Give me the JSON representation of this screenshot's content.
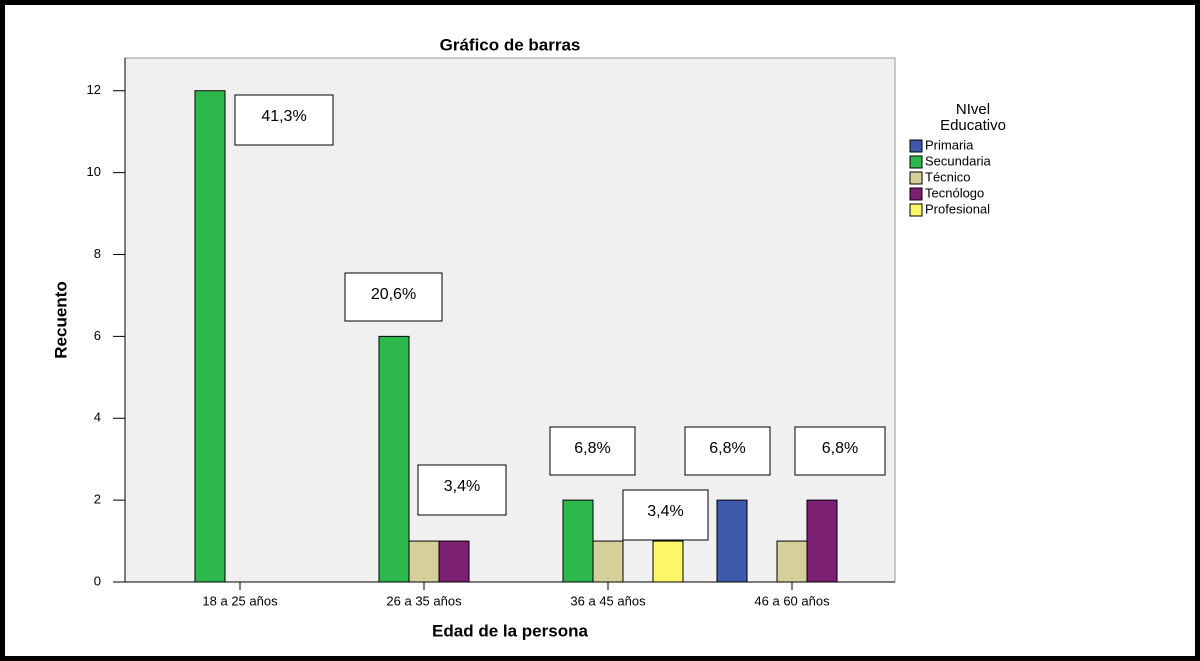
{
  "chart_data": {
    "type": "bar",
    "title": "Gráfico de barras",
    "x_label": "Edad de la persona",
    "y_label": "Recuento",
    "legend_title": [
      "NIvel",
      "Educativo"
    ],
    "legend": "right",
    "categories": [
      "18 a 25 años",
      "26 a 35 años",
      "36 a 45 años",
      "46 a 60 años"
    ],
    "series": [
      {
        "name": "Primaria",
        "color": "#3e58ac",
        "values": [
          0,
          0,
          0,
          2
        ]
      },
      {
        "name": "Secundaria",
        "color": "#2db84c",
        "values": [
          12,
          6,
          2,
          0
        ]
      },
      {
        "name": "Técnico",
        "color": "#d6cf9a",
        "values": [
          0,
          1,
          1,
          1
        ]
      },
      {
        "name": "Tecnólogo",
        "color": "#7b2073",
        "values": [
          0,
          1,
          0,
          2
        ]
      },
      {
        "name": "Profesional",
        "color": "#fbf769",
        "values": [
          0,
          0,
          1,
          0
        ]
      }
    ],
    "ylim": [
      0,
      12.8
    ],
    "yticks": [
      0,
      2,
      4,
      6,
      8,
      10,
      12
    ],
    "annotations": [
      "41,3%",
      "20,6%",
      "3,4%",
      "6,8%",
      "3,4%",
      "6,8%",
      "6,8%"
    ]
  }
}
